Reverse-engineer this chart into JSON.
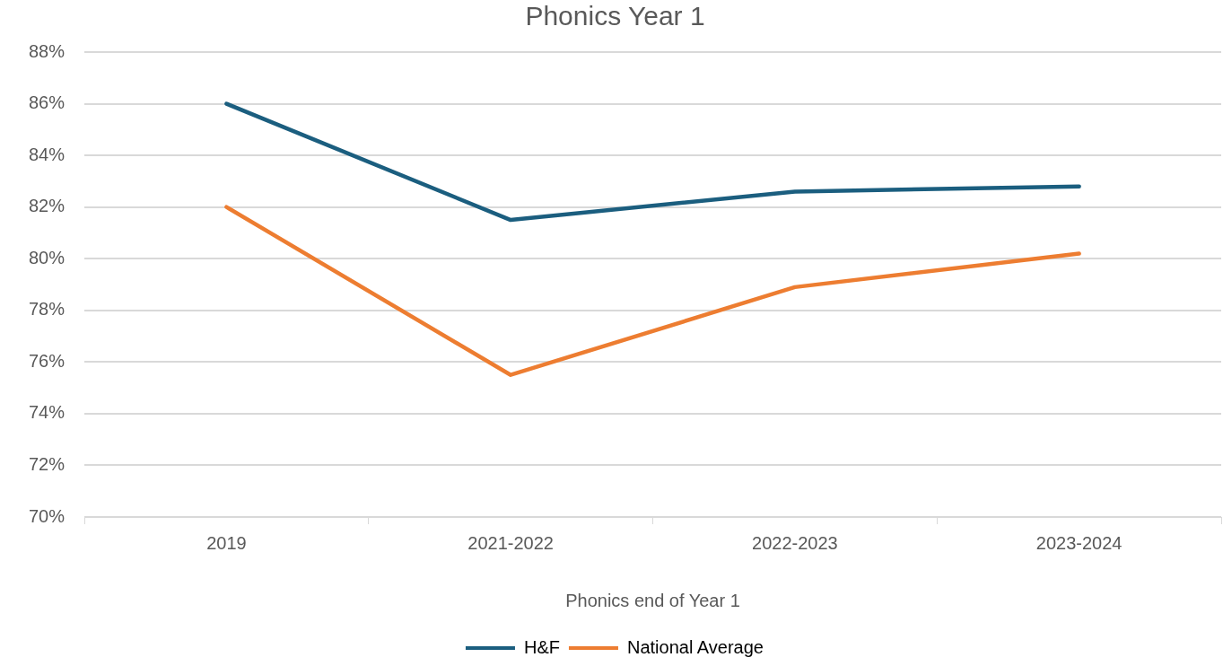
{
  "chart_data": {
    "type": "line",
    "title": "Phonics Year 1",
    "xlabel": "Phonics end of Year 1",
    "categories": [
      "2019",
      "2021-2022",
      "2022-2023",
      "2023-2024"
    ],
    "series": [
      {
        "name": "H&F",
        "color": "#1b5e7f",
        "values": [
          86.0,
          81.5,
          82.6,
          82.8
        ]
      },
      {
        "name": "National Average",
        "color": "#ed7d31",
        "values": [
          82.0,
          75.5,
          78.9,
          80.2
        ]
      }
    ],
    "ylim": [
      70,
      88
    ],
    "yticks": [
      {
        "value": 70,
        "label": "70%"
      },
      {
        "value": 72,
        "label": "72%"
      },
      {
        "value": 74,
        "label": "74%"
      },
      {
        "value": 76,
        "label": "76%"
      },
      {
        "value": 78,
        "label": "78%"
      },
      {
        "value": 80,
        "label": "80%"
      },
      {
        "value": 82,
        "label": "82%"
      },
      {
        "value": 84,
        "label": "84%"
      },
      {
        "value": 86,
        "label": "86%"
      },
      {
        "value": 88,
        "label": "88%"
      }
    ],
    "grid": "y",
    "legend": "bottom",
    "marker": "none",
    "line_style": "solid"
  }
}
